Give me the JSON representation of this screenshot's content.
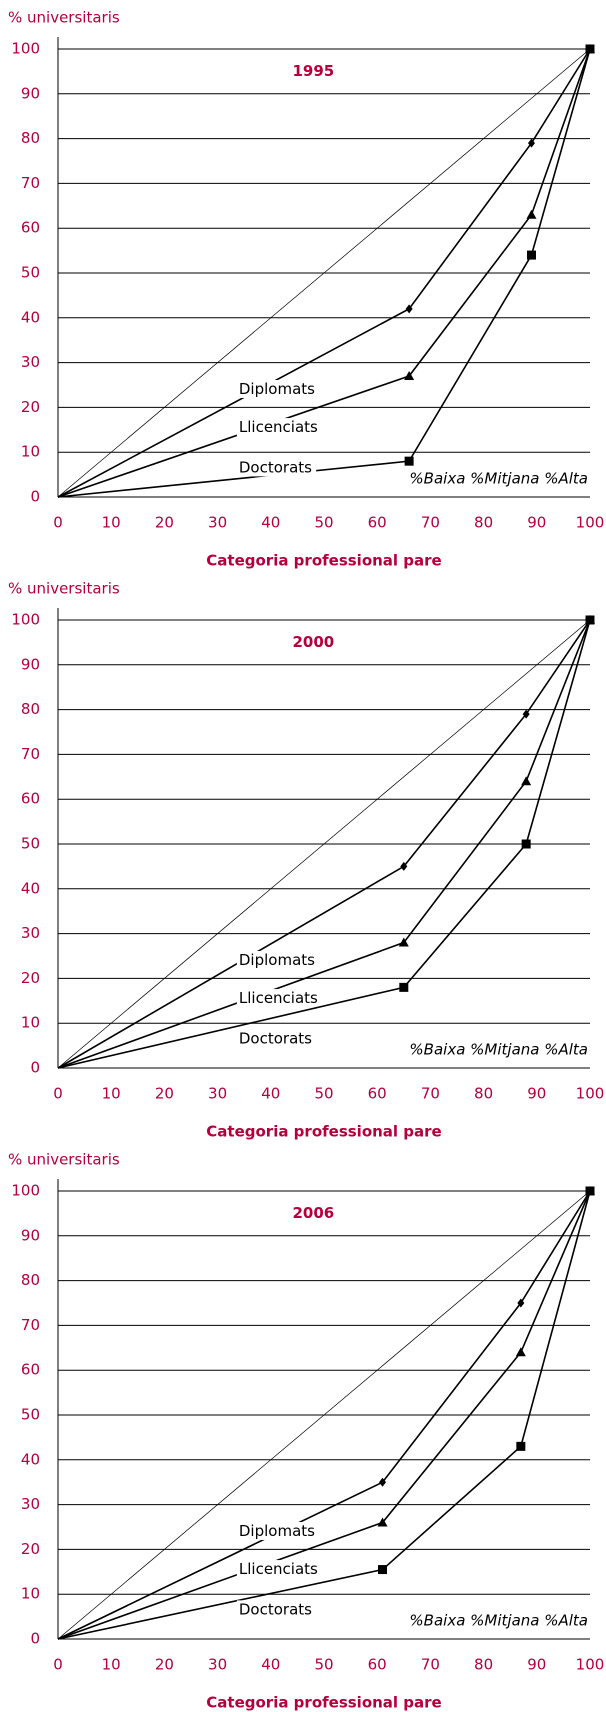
{
  "chart_data": [
    {
      "type": "line",
      "title": "1995",
      "y_label": "% universitaris",
      "x_label": "Categoria professional pare",
      "annotation": "%Baixa %Mitjana %Alta",
      "xlim": [
        0,
        100
      ],
      "ylim": [
        0,
        100
      ],
      "xticks": [
        0,
        10,
        20,
        30,
        40,
        50,
        60,
        70,
        80,
        90,
        100
      ],
      "yticks": [
        0,
        10,
        20,
        30,
        40,
        50,
        60,
        70,
        80,
        90,
        100
      ],
      "grid": true,
      "equality_line": {
        "x": [
          0,
          100
        ],
        "values": [
          0,
          100
        ]
      },
      "series": [
        {
          "name": "Diplomats",
          "color": "#000000",
          "marker": "diamond",
          "x": [
            0,
            66,
            89,
            100
          ],
          "values": [
            0,
            42,
            79,
            100
          ]
        },
        {
          "name": "Llicenciats",
          "color": "#000000",
          "marker": "triangle",
          "x": [
            0,
            66,
            89,
            100
          ],
          "values": [
            0,
            27,
            63,
            100
          ]
        },
        {
          "name": "Doctorats",
          "color": "#000000",
          "marker": "square",
          "x": [
            0,
            66,
            89,
            100
          ],
          "values": [
            0,
            8,
            54,
            100
          ]
        }
      ]
    },
    {
      "type": "line",
      "title": "2000",
      "y_label": "% universitaris",
      "x_label": "Categoria professional pare",
      "annotation": "%Baixa %Mitjana %Alta",
      "xlim": [
        0,
        100
      ],
      "ylim": [
        0,
        100
      ],
      "xticks": [
        0,
        10,
        20,
        30,
        40,
        50,
        60,
        70,
        80,
        90,
        100
      ],
      "yticks": [
        0,
        10,
        20,
        30,
        40,
        50,
        60,
        70,
        80,
        90,
        100
      ],
      "grid": true,
      "equality_line": {
        "x": [
          0,
          100
        ],
        "values": [
          0,
          100
        ]
      },
      "series": [
        {
          "name": "Diplomats",
          "color": "#000000",
          "marker": "diamond",
          "x": [
            0,
            65,
            88,
            100
          ],
          "values": [
            0,
            45,
            79,
            100
          ]
        },
        {
          "name": "Llicenciats",
          "color": "#000000",
          "marker": "triangle",
          "x": [
            0,
            65,
            88,
            100
          ],
          "values": [
            0,
            28,
            64,
            100
          ]
        },
        {
          "name": "Doctorats",
          "color": "#000000",
          "marker": "square",
          "x": [
            0,
            65,
            88,
            100
          ],
          "values": [
            0,
            18,
            50,
            100
          ]
        }
      ]
    },
    {
      "type": "line",
      "title": "2006",
      "y_label": "% universitaris",
      "x_label": "Categoria professional pare",
      "annotation": "%Baixa %Mitjana %Alta",
      "xlim": [
        0,
        100
      ],
      "ylim": [
        0,
        100
      ],
      "xticks": [
        0,
        10,
        20,
        30,
        40,
        50,
        60,
        70,
        80,
        90,
        100
      ],
      "yticks": [
        0,
        10,
        20,
        30,
        40,
        50,
        60,
        70,
        80,
        90,
        100
      ],
      "grid": true,
      "equality_line": {
        "x": [
          0,
          100
        ],
        "values": [
          0,
          100
        ]
      },
      "series": [
        {
          "name": "Diplomats",
          "color": "#000000",
          "marker": "diamond",
          "x": [
            0,
            61,
            87,
            100
          ],
          "values": [
            0,
            35,
            75,
            100
          ]
        },
        {
          "name": "Llicenciats",
          "color": "#000000",
          "marker": "triangle",
          "x": [
            0,
            61,
            87,
            100
          ],
          "values": [
            0,
            26,
            64,
            100
          ]
        },
        {
          "name": "Doctorats",
          "color": "#000000",
          "marker": "square",
          "x": [
            0,
            61,
            87,
            100
          ],
          "values": [
            0,
            15.5,
            43,
            100
          ]
        }
      ]
    }
  ]
}
